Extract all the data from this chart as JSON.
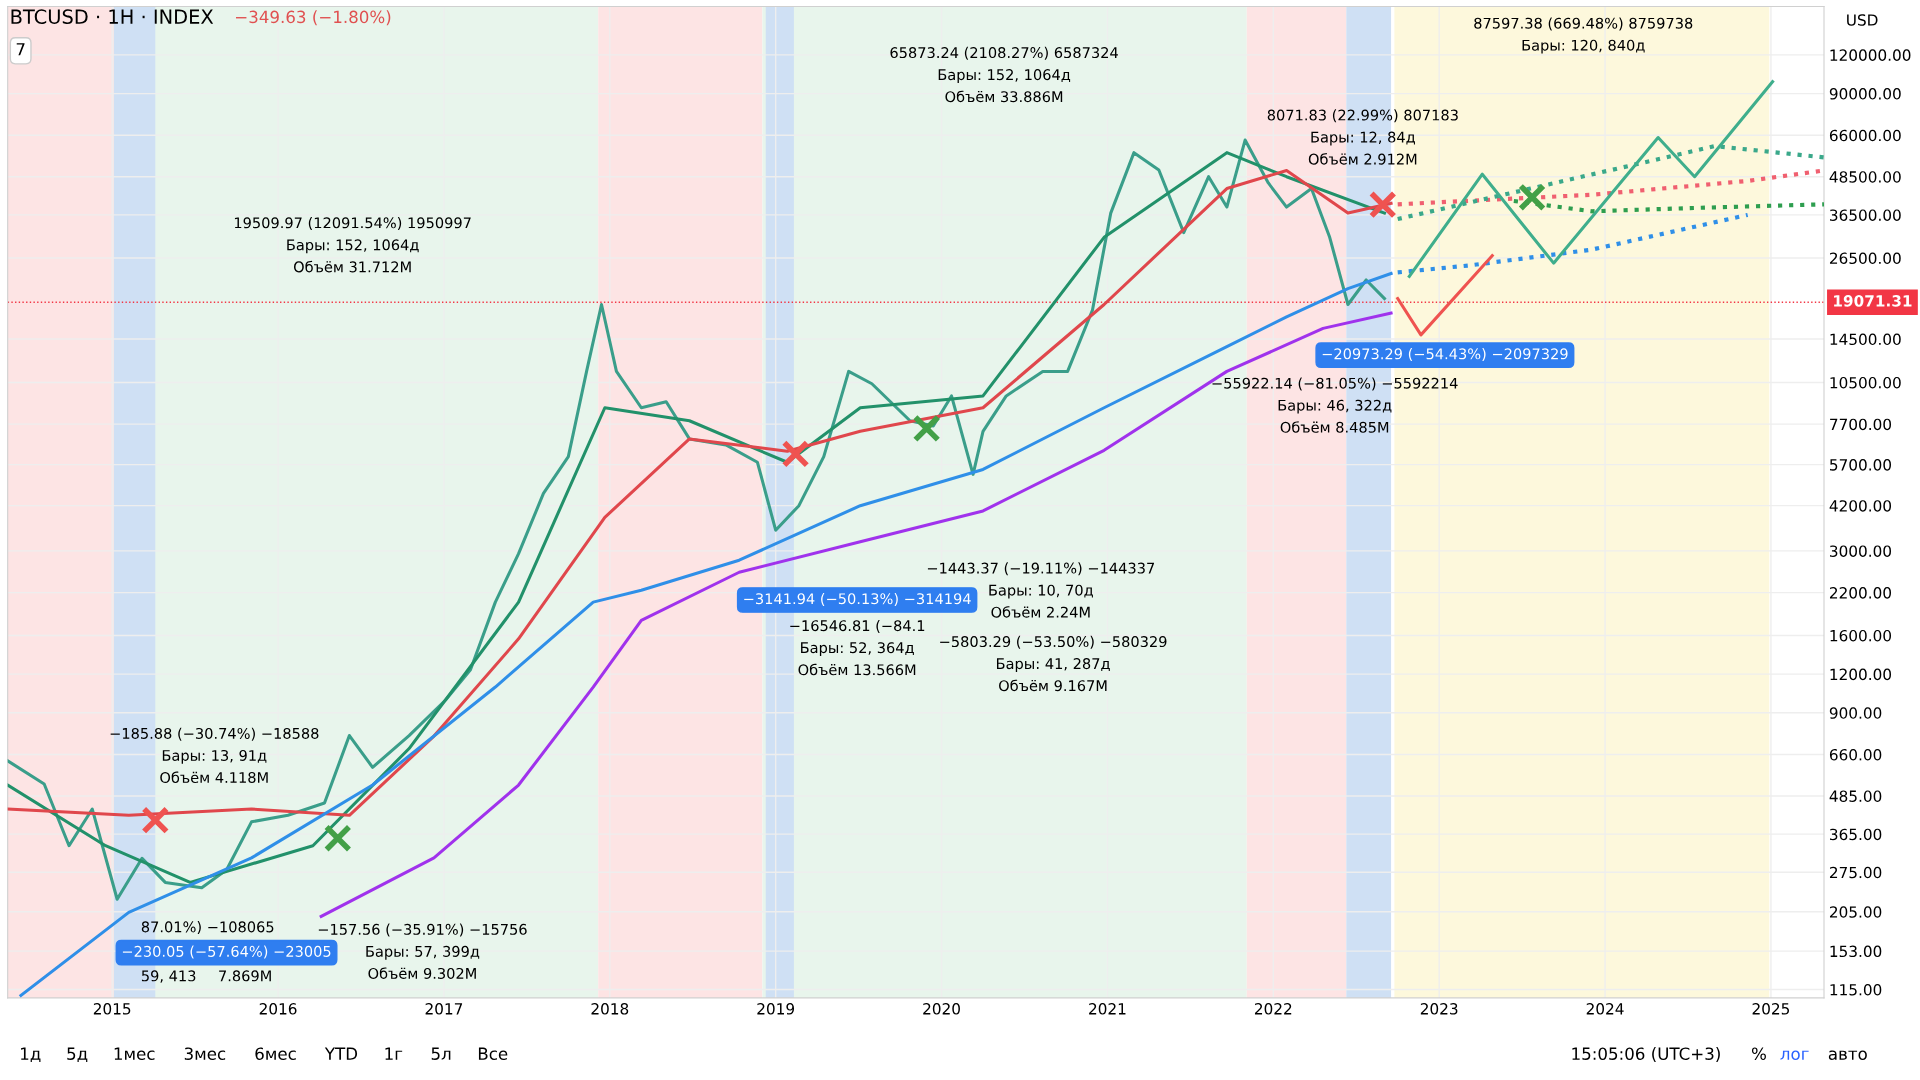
{
  "chart_data": {
    "type": "line",
    "title": "BTCUSD · 1H · INDEX",
    "subtitle": "−349.63 (−1.80%)",
    "ylabel": "USD",
    "log": true,
    "grid": true,
    "legend": false,
    "xlim": [
      2014.37,
      2025.32
    ],
    "xticks": [
      2015,
      2016,
      2017,
      2018,
      2019,
      2020,
      2021,
      2022,
      2023,
      2024,
      2025
    ],
    "ylim": [
      108,
      172000
    ],
    "yticks": [
      {
        "value": 115,
        "label": "115.00"
      },
      {
        "value": 153,
        "label": "153.00"
      },
      {
        "value": 205,
        "label": "205.00"
      },
      {
        "value": 275,
        "label": "275.00"
      },
      {
        "value": 365,
        "label": "365.00"
      },
      {
        "value": 485,
        "label": "485.00"
      },
      {
        "value": 660,
        "label": "660.00"
      },
      {
        "value": 900,
        "label": "900.00"
      },
      {
        "value": 1200,
        "label": "1200.00"
      },
      {
        "value": 1600,
        "label": "1600.00"
      },
      {
        "value": 2200,
        "label": "2200.00"
      },
      {
        "value": 3000,
        "label": "3000.00"
      },
      {
        "value": 4200,
        "label": "4200.00"
      },
      {
        "value": 5700,
        "label": "5700.00"
      },
      {
        "value": 7700,
        "label": "7700.00"
      },
      {
        "value": 10500,
        "label": "10500.00"
      },
      {
        "value": 14500,
        "label": "14500.00"
      },
      {
        "value": 26500,
        "label": "26500.00"
      },
      {
        "value": 36500,
        "label": "36500.00"
      },
      {
        "value": 48500,
        "label": "48500.00"
      },
      {
        "value": 66000,
        "label": "66000.00"
      },
      {
        "value": 90000,
        "label": "90000.00"
      },
      {
        "value": 120000,
        "label": "120000.00"
      }
    ],
    "ref_lines": [
      {
        "axis": "y",
        "value": 19071.31,
        "label": "19071.31",
        "color": "#f23645",
        "line_style": "dotted"
      }
    ],
    "bands": [
      {
        "axis": "x",
        "from": 2014.37,
        "to": 2015.01,
        "color": "#fde4e4"
      },
      {
        "axis": "x",
        "from": 2015.01,
        "to": 2017.93,
        "color": "#e8f5ec"
      },
      {
        "axis": "x",
        "from": 2017.93,
        "to": 2018.92,
        "color": "#fde4e4"
      },
      {
        "axis": "x",
        "from": 2018.92,
        "to": 2021.84,
        "color": "#e8f5ec"
      },
      {
        "axis": "x",
        "from": 2021.84,
        "to": 2022.44,
        "color": "#fde4e4"
      },
      {
        "axis": "x",
        "from": 2022.73,
        "to": 2024.99,
        "color": "#fdf8dc"
      },
      {
        "axis": "x",
        "from": 2015.01,
        "to": 2015.26,
        "color": "#cfe0f4"
      },
      {
        "axis": "x",
        "from": 2018.94,
        "to": 2019.11,
        "color": "#cfe0f4"
      },
      {
        "axis": "x",
        "from": 2022.44,
        "to": 2022.71,
        "color": "#cfe0f4"
      }
    ],
    "series": [
      {
        "color": "#3a9e8a",
        "line_style": "solid",
        "x": [
          2014.37,
          2014.59,
          2014.74,
          2014.88,
          2015.03,
          2015.18,
          2015.32,
          2015.54,
          2015.69,
          2015.84,
          2016.06,
          2016.28,
          2016.43,
          2016.57,
          2016.79,
          2017.01,
          2017.16,
          2017.31,
          2017.45,
          2017.6,
          2017.75,
          2017.86,
          2017.95,
          2018.04,
          2018.19,
          2018.34,
          2018.48,
          2018.7,
          2018.89,
          2019.0,
          2019.14,
          2019.29,
          2019.44,
          2019.58,
          2019.81,
          2019.95,
          2020.06,
          2020.19,
          2020.25,
          2020.39,
          2020.61,
          2020.76,
          2020.91,
          2021.02,
          2021.16,
          2021.31,
          2021.46,
          2021.61,
          2021.72,
          2021.83,
          2021.97,
          2022.08,
          2022.23,
          2022.34,
          2022.45,
          2022.56,
          2022.67
        ],
        "values": [
          630,
          530,
          335,
          440,
          225,
          305,
          255,
          245,
          280,
          400,
          420,
          460,
          760,
          600,
          760,
          990,
          1240,
          2050,
          2940,
          4600,
          6050,
          11400,
          18750,
          11400,
          8700,
          9100,
          6900,
          6600,
          5800,
          3500,
          4200,
          6050,
          11400,
          10400,
          7900,
          7600,
          9500,
          5300,
          7300,
          9500,
          11400,
          11400,
          18000,
          37000,
          58000,
          51000,
          32000,
          48500,
          38700,
          63700,
          46300,
          38700,
          44400,
          30900,
          18750,
          22500,
          19600
        ]
      },
      {
        "color": "#22916a",
        "line_style": "solid",
        "x": [
          2014.37,
          2014.96,
          2015.47,
          2016.21,
          2016.79,
          2017.45,
          2017.97,
          2018.48,
          2019.07,
          2019.51,
          2020.25,
          2020.98,
          2021.72,
          2022.08,
          2022.67
        ],
        "values": [
          526,
          335,
          255,
          335,
          690,
          2050,
          8700,
          7900,
          5800,
          8700,
          9500,
          30900,
          58000,
          48500,
          37000
        ]
      },
      {
        "color": "#e0474c",
        "line_style": "solid",
        "x": [
          2014.37,
          2015.1,
          2015.84,
          2016.43,
          2016.94,
          2017.45,
          2017.97,
          2018.48,
          2019.07,
          2019.51,
          2020.25,
          2020.98,
          2021.72,
          2022.08,
          2022.45,
          2022.71
        ],
        "values": [
          440,
          420,
          440,
          420,
          757,
          1560,
          3850,
          6900,
          6300,
          7300,
          8700,
          18750,
          44400,
          50800,
          37000,
          39800
        ]
      },
      {
        "color": "#2f8fe8",
        "line_style": "solid",
        "x": [
          2014.45,
          2015.1,
          2015.84,
          2016.57,
          2017.31,
          2017.9,
          2018.19,
          2018.78,
          2019.51,
          2020.25,
          2020.98,
          2021.72,
          2022.08,
          2022.45,
          2022.71
        ],
        "values": [
          110,
          204,
          306,
          526,
          1090,
          2050,
          2240,
          2800,
          4200,
          5500,
          8700,
          13700,
          17100,
          21100,
          23600
        ]
      },
      {
        "color": "#a032ec",
        "line_style": "solid",
        "x": [
          2016.26,
          2016.94,
          2017.45,
          2017.9,
          2018.19,
          2018.78,
          2019.51,
          2020.25,
          2020.98,
          2021.72,
          2022.3,
          2022.71
        ],
        "values": [
          198,
          306,
          526,
          1090,
          1790,
          2560,
          3210,
          4040,
          6340,
          11400,
          15700,
          17600
        ]
      },
      {
        "color": "#2f8fe8",
        "line_style": "dotted",
        "x": [
          2022.75,
          2023.19,
          2023.92,
          2024.58,
          2024.86
        ],
        "values": [
          23800,
          25100,
          28200,
          33800,
          36500
        ]
      },
      {
        "color": "#f06070",
        "line_style": "dotted",
        "x": [
          2022.75,
          2023.92,
          2024.86,
          2025.32
        ],
        "values": [
          39500,
          42400,
          47000,
          50800
        ]
      },
      {
        "color": "#3aa88a",
        "line_style": "dotted",
        "x": [
          2022.75,
          2023.55,
          2024.24,
          2024.66,
          2025.32
        ],
        "values": [
          35400,
          44400,
          54000,
          60900,
          56000
        ]
      },
      {
        "color": "#2e9e4f",
        "line_style": "dotted",
        "x": [
          2023.45,
          2023.92,
          2024.58,
          2025.32
        ],
        "values": [
          40500,
          37500,
          38500,
          39500
        ]
      },
      {
        "color": "#3fae8c",
        "line_style": "solid",
        "x": [
          2022.82,
          2023.26,
          2023.69,
          2024.32,
          2024.54,
          2025.01
        ],
        "values": [
          23100,
          49400,
          25500,
          64900,
          48500,
          98300
        ]
      },
      {
        "color": "#ef5350",
        "line_style": "solid",
        "x": [
          2022.75,
          2022.89,
          2023.32
        ],
        "values": [
          19600,
          14960,
          26950
        ]
      },
      {
        "type": "scatter",
        "marker": "cross",
        "x": [
          2015.26,
          2019.12,
          2022.66,
          2016.36,
          2019.91,
          2023.56
        ],
        "values": [
          405,
          6170,
          39400,
          354,
          7460,
          41600
        ],
        "colors": [
          "#ef5350",
          "#ef5350",
          "#ef5350",
          "#43a047",
          "#43a047",
          "#43a047"
        ]
      }
    ],
    "annotations": [
      "7",
      "19509.97 (12091.54%) 1950997",
      "Бары: 152, 1064д",
      "Объём 31.712M",
      "65873.24 (2108.27%) 6587324",
      "Бары: 152, 1064д",
      "Объём 33.886M",
      "8071.83 (22.99%) 807183",
      "Бары: 12, 84д",
      "Объём 2.912M",
      "87597.38 (669.48%) 8759738",
      "Бары: 120, 840д",
      "−55922.14 (−81.05%) −5592214",
      "Бары: 46, 322д",
      "Объём 8.485M",
      "−20973.29 (−54.43%) −2097329",
      "−16546.81 (−84.1",
      "Бары: 52, 364д",
      "Объём 13.566M",
      "−3141.94 (−50.13%) −314194",
      "−1443.37 (−19.11%) −144337",
      "Бары: 10, 70д",
      "Объём 2.24M",
      "−5803.29 (−53.50%) −580329",
      "Бары: 41, 287д",
      "Объём 9.167M",
      "−185.88 (−30.74%) −18588",
      "Бары: 13, 91д",
      "Объём 4.118M",
      "−157.56 (−35.91%) −15756",
      "Бары: 57, 399д",
      "Объём 9.302M",
      "87.01%) −108065",
      "−230.05 (−57.64%) −23005",
      "59, 413",
      "7.869M",
      "1д",
      "5д",
      "1мес",
      "3мес",
      "6мес",
      "YTD",
      "1г",
      "5л",
      "Все",
      "15:05:06 (UTC+3)",
      "%",
      "лог",
      "авто"
    ]
  }
}
